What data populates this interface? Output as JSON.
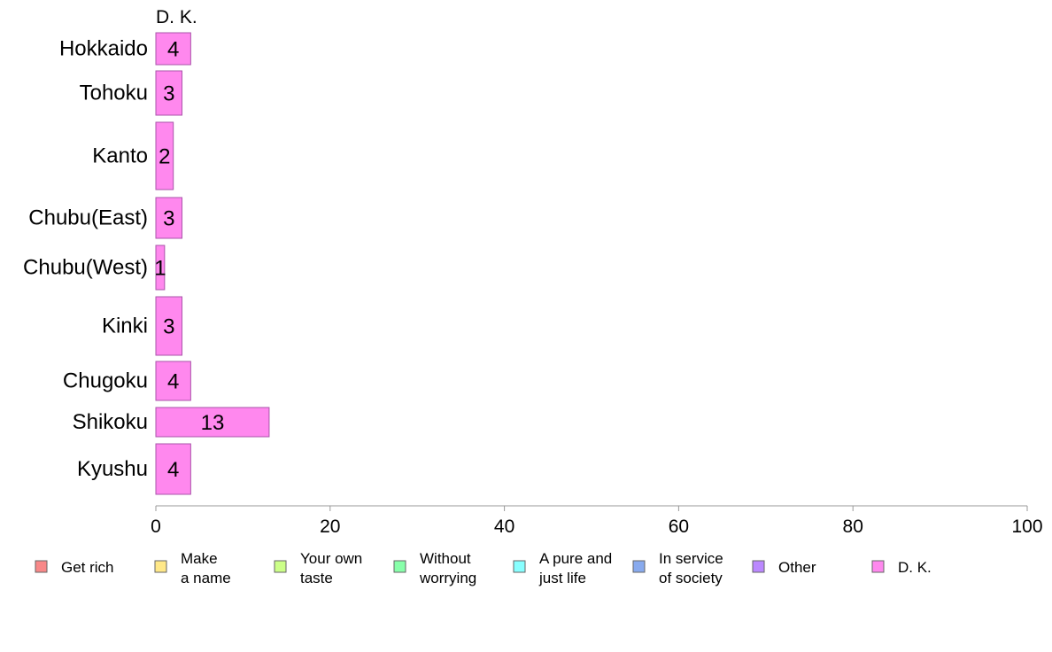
{
  "chart_data": {
    "type": "bar",
    "orientation": "horizontal",
    "panel_title": "D. K.",
    "categories": [
      "Hokkaido",
      "Tohoku",
      "Kanto",
      "Chubu(East)",
      "Chubu(West)",
      "Kinki",
      "Chugoku",
      "Shikoku",
      "Kyushu"
    ],
    "series": [
      {
        "name": "D. K.",
        "values": [
          4,
          3,
          2,
          3,
          1,
          3,
          4,
          13,
          4
        ],
        "color": "#ff88ee"
      }
    ],
    "xlim": [
      0,
      100
    ],
    "xticks": [
      0,
      20,
      40,
      60,
      80,
      100
    ],
    "legend": {
      "placement": "bottom",
      "items": [
        {
          "label": "Get rich",
          "color": "#f88888"
        },
        {
          "label": "Make\na name",
          "color": "#ffe888"
        },
        {
          "label": "Your own\ntaste",
          "color": "#ccff88"
        },
        {
          "label": "Without\nworrying",
          "color": "#88ffaa"
        },
        {
          "label": "A pure and\njust life",
          "color": "#88ffff"
        },
        {
          "label": "In service\nof society",
          "color": "#88aaee"
        },
        {
          "label": "Other",
          "color": "#bb88ff"
        },
        {
          "label": "D. K.",
          "color": "#ff88ee"
        }
      ]
    },
    "grid": false
  }
}
